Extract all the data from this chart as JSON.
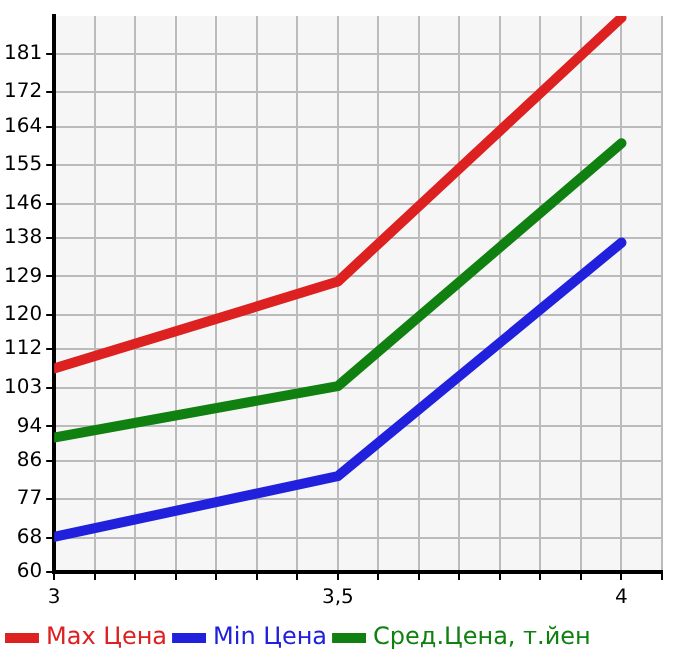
{
  "chart_data": {
    "type": "line",
    "x": [
      3,
      3.5,
      4
    ],
    "series": [
      {
        "name": "Max Цена",
        "color": "#dd2020",
        "values": [
          107.5,
          127.8,
          189.4
        ]
      },
      {
        "name": "Min Цена",
        "color": "#2020dd",
        "values": [
          68.2,
          82.4,
          136.9
        ]
      },
      {
        "name": "Сред.Цена, т.йен",
        "color": "#108010",
        "values": [
          91.4,
          103.4,
          160.1
        ]
      }
    ],
    "xlim": [
      3,
      4.0714
    ],
    "xticks": [
      {
        "value": 3,
        "label": "3"
      },
      {
        "value": 3.0714,
        "label": null
      },
      {
        "value": 3.1429,
        "label": null
      },
      {
        "value": 3.2143,
        "label": null
      },
      {
        "value": 3.2857,
        "label": null
      },
      {
        "value": 3.3571,
        "label": null
      },
      {
        "value": 3.4286,
        "label": null
      },
      {
        "value": 3.5,
        "label": "3,5"
      },
      {
        "value": 3.5714,
        "label": null
      },
      {
        "value": 3.6429,
        "label": null
      },
      {
        "value": 3.7143,
        "label": null
      },
      {
        "value": 3.7857,
        "label": null
      },
      {
        "value": 3.8571,
        "label": null
      },
      {
        "value": 3.9286,
        "label": null
      },
      {
        "value": 4,
        "label": "4"
      },
      {
        "value": 4.0714,
        "label": null
      }
    ],
    "ylim": [
      60,
      189.8
    ],
    "yticks": [
      60,
      68,
      77,
      86,
      94,
      103,
      112,
      120,
      129,
      138,
      146,
      155,
      164,
      172,
      181
    ],
    "grid": true,
    "legend": "bottom",
    "marker": "none",
    "line_style": "solid"
  }
}
